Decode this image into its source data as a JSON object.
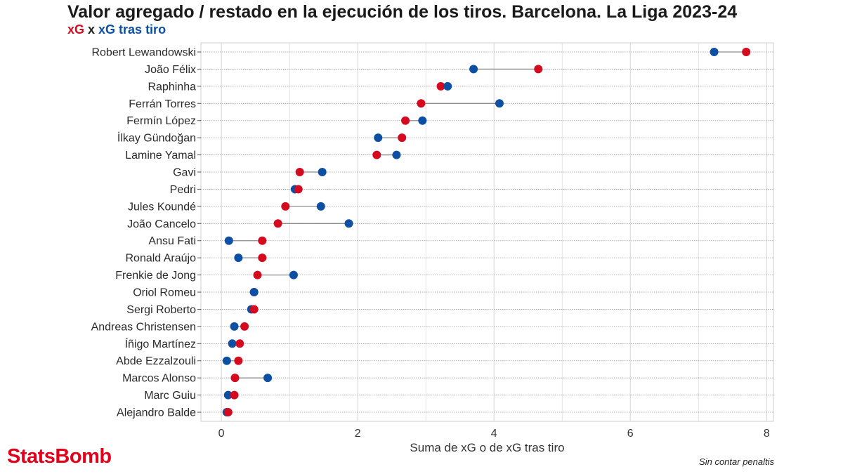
{
  "title": "Valor agregado / restado en la ejecución de los tiros. Barcelona. La Liga 2023-24",
  "subtitle": {
    "xg_label": "xG",
    "separator": " x ",
    "xgot_label": "xG tras tiro"
  },
  "brand": "StatsBomb",
  "note": "Sin contar penaltis",
  "colors": {
    "xg": "#d50a1f",
    "xgot": "#0d4fa3",
    "connector": "#8c8c8c",
    "grid": "#d9d9d9"
  },
  "chart_data": {
    "type": "dumbbell",
    "xlabel": "Suma de xG o de xG tras tiro",
    "ylabel": "",
    "xlim": [
      -0.3,
      8.1
    ],
    "xticks": [
      0,
      2,
      4,
      6,
      8
    ],
    "grid": true,
    "categories": [
      "Robert Lewandowski",
      "João Félix",
      "Raphinha",
      "Ferrán Torres",
      "Fermín López",
      "İlkay Gündoğan",
      "Lamine Yamal",
      "Gavi",
      "Pedri",
      "Jules Koundé",
      "João Cancelo",
      "Ansu Fati",
      "Ronald Araújo",
      "Frenkie de Jong",
      "Oriol Romeu",
      "Sergi Roberto",
      "Andreas Christensen",
      "Íñigo Martínez",
      "Abde Ezzalzouli",
      "Marcos Alonso",
      "Marc Guiu",
      "Alejandro Balde"
    ],
    "series": [
      {
        "name": "xG",
        "color": "#d50a1f",
        "values": [
          7.7,
          4.65,
          3.22,
          2.93,
          2.7,
          2.65,
          2.28,
          1.15,
          1.13,
          0.94,
          0.83,
          0.6,
          0.6,
          0.53,
          0.48,
          0.48,
          0.34,
          0.27,
          0.25,
          0.2,
          0.19,
          0.1
        ]
      },
      {
        "name": "xG tras tiro",
        "color": "#0d4fa3",
        "values": [
          7.23,
          3.7,
          3.32,
          4.08,
          2.95,
          2.3,
          2.57,
          1.48,
          1.08,
          1.46,
          1.87,
          0.11,
          0.25,
          1.06,
          0.48,
          0.44,
          0.19,
          0.16,
          0.08,
          0.68,
          0.1,
          0.08
        ]
      }
    ]
  }
}
